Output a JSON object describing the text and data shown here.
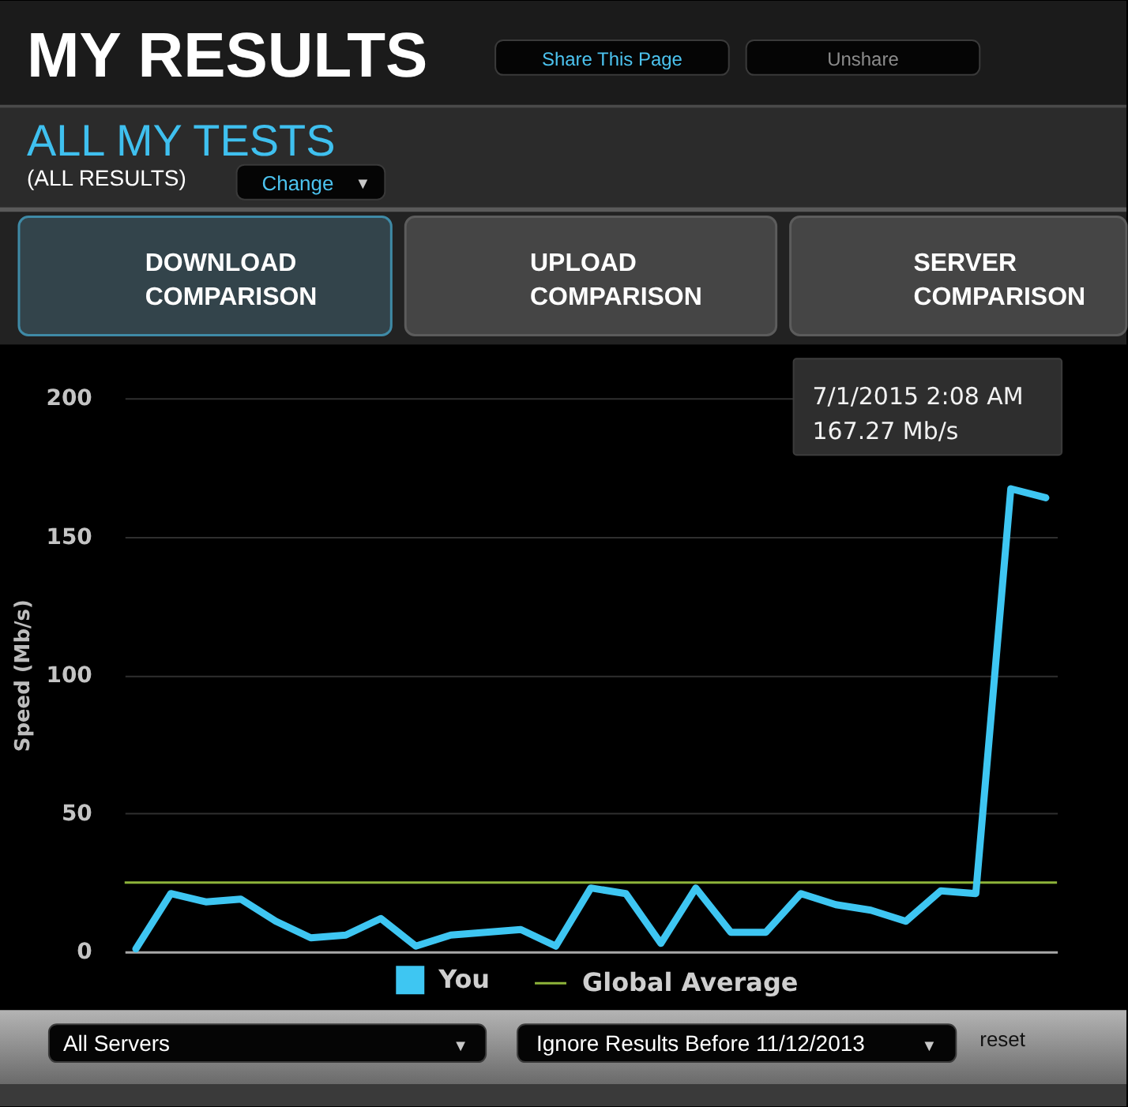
{
  "chart_data": {
    "type": "line",
    "title": "MY RESULTS",
    "subtitle": "ALL MY TESTS",
    "ylabel": "Speed (Mb/s)",
    "categories": [
      null,
      null,
      null,
      null,
      null,
      null,
      null,
      null,
      null,
      null,
      null,
      null,
      null,
      null,
      null,
      null,
      null,
      null,
      null,
      null,
      null,
      null,
      null,
      null,
      null,
      null,
      null
    ],
    "series": [
      {
        "name": "You",
        "color": "#3ec6f2",
        "values": [
          1,
          21,
          18,
          19,
          11,
          5,
          6,
          12,
          2,
          6,
          7,
          8,
          2,
          23,
          21,
          3,
          23,
          7,
          7,
          21,
          17,
          15,
          11,
          22,
          21,
          167.27,
          164
        ]
      }
    ],
    "ylim": [
      0,
      200
    ],
    "yticks": [
      0,
      50,
      100,
      150,
      200
    ],
    "grid": "y",
    "legend": "bottom",
    "tick_labels": "y",
    "ref_lines": [
      {
        "axis": "y",
        "value": 25,
        "label": "Global Average",
        "color": "#8db33a"
      }
    ],
    "annotations": [
      "(ALL RESULTS)",
      "Share This Page",
      "Unshare",
      "Change",
      "▼",
      "DOWNLOAD\nCOMPARISON",
      "UPLOAD\nCOMPARISON",
      "SERVER\nCOMPARISON",
      "All Servers",
      "▼",
      "Ignore Results Before 11/12/2013",
      "▼",
      "reset",
      "7/1/2015 2:08 AM\n167.27 Mb/s"
    ]
  }
}
